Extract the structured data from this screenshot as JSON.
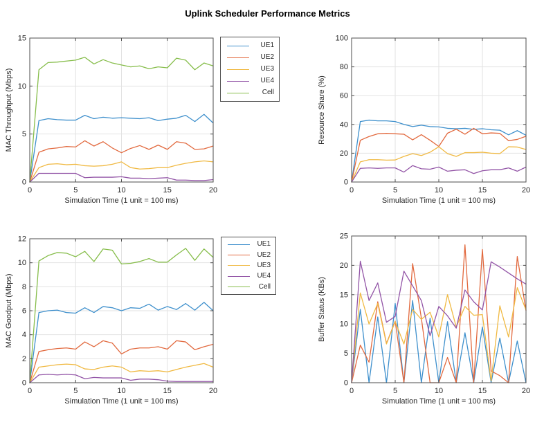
{
  "title": "Uplink Scheduler Performance Metrics",
  "palette": {
    "UE1": "#3D8FCC",
    "UE2": "#E2693E",
    "UE3": "#F0B942",
    "UE4": "#9254A6",
    "Cell": "#86BD4A"
  },
  "axis_colors": {
    "box": "#4d4d4d",
    "grid": "#e2e2e2",
    "text": "#262626"
  },
  "chart_data": [
    {
      "type": "line",
      "ylabel": "MAC Throughput (Mbps)",
      "xlabel": "Simulation Time (1 unit = 100 ms)",
      "xlim": [
        0,
        20
      ],
      "ylim": [
        0,
        15
      ],
      "xticks": [
        0,
        5,
        10,
        15,
        20
      ],
      "yticks": [
        0,
        5,
        10,
        15
      ],
      "grid": true,
      "legend_visible": true,
      "legend_position": "outside-right",
      "x": [
        0,
        1,
        2,
        3,
        4,
        5,
        6,
        7,
        8,
        9,
        10,
        11,
        12,
        13,
        14,
        15,
        16,
        17,
        18,
        19,
        20
      ],
      "series": [
        {
          "name": "UE1",
          "color": "#3D8FCC",
          "values": [
            0,
            6.4,
            6.6,
            6.5,
            6.45,
            6.45,
            6.95,
            6.6,
            6.75,
            6.65,
            6.7,
            6.65,
            6.6,
            6.7,
            6.4,
            6.55,
            6.65,
            6.95,
            6.3,
            7.05,
            6.15
          ]
        },
        {
          "name": "UE2",
          "color": "#E2693E",
          "values": [
            0,
            3.1,
            3.45,
            3.55,
            3.7,
            3.65,
            4.3,
            3.75,
            4.2,
            3.55,
            3.05,
            3.5,
            3.8,
            3.4,
            3.85,
            3.4,
            4.2,
            4.05,
            3.4,
            3.45,
            3.75
          ]
        },
        {
          "name": "UE3",
          "color": "#F0B942",
          "values": [
            0,
            1.5,
            1.85,
            1.9,
            1.8,
            1.85,
            1.7,
            1.65,
            1.7,
            1.85,
            2.1,
            1.5,
            1.35,
            1.4,
            1.5,
            1.5,
            1.75,
            1.95,
            2.1,
            2.2,
            2.1
          ]
        },
        {
          "name": "UE4",
          "color": "#9254A6",
          "values": [
            0,
            0.9,
            0.9,
            0.9,
            0.9,
            0.9,
            0.45,
            0.5,
            0.5,
            0.5,
            0.55,
            0.4,
            0.4,
            0.35,
            0.4,
            0.45,
            0.2,
            0.2,
            0.15,
            0.15,
            0.25
          ]
        },
        {
          "name": "Cell",
          "color": "#86BD4A",
          "values": [
            0,
            11.7,
            12.45,
            12.5,
            12.6,
            12.7,
            13.0,
            12.3,
            12.75,
            12.4,
            12.2,
            12.0,
            12.1,
            11.8,
            12.0,
            11.9,
            12.9,
            12.7,
            11.7,
            12.4,
            12.1
          ]
        }
      ]
    },
    {
      "type": "line",
      "ylabel": "Resource Share (%)",
      "xlabel": "Simulation Time (1 unit = 100 ms)",
      "xlim": [
        0,
        20
      ],
      "ylim": [
        0,
        100
      ],
      "xticks": [
        0,
        5,
        10,
        15,
        20
      ],
      "yticks": [
        0,
        20,
        40,
        60,
        80,
        100
      ],
      "grid": true,
      "legend_visible": false,
      "x": [
        0,
        1,
        2,
        3,
        4,
        5,
        6,
        7,
        8,
        9,
        10,
        11,
        12,
        13,
        14,
        15,
        16,
        17,
        18,
        19,
        20
      ],
      "series": [
        {
          "name": "UE1",
          "color": "#3D8FCC",
          "values": [
            0,
            42,
            43,
            42.5,
            42.5,
            42,
            40,
            38.5,
            39.5,
            38.5,
            38.3,
            37.3,
            37,
            37.3,
            36.6,
            37,
            36.3,
            36,
            32.8,
            35.7,
            32.5
          ]
        },
        {
          "name": "UE2",
          "color": "#E2693E",
          "values": [
            0,
            29,
            31.6,
            33.5,
            33.8,
            33.5,
            33.2,
            29.3,
            32.9,
            29,
            24.7,
            33.9,
            36.7,
            33.2,
            37.3,
            33.5,
            34.1,
            33.8,
            28.7,
            29.6,
            31.8
          ]
        },
        {
          "name": "UE3",
          "color": "#F0B942",
          "values": [
            0,
            14,
            15.5,
            15.5,
            15.2,
            15.3,
            17.8,
            19.7,
            18.4,
            20.7,
            24.5,
            19.7,
            17.8,
            20.4,
            20.4,
            20.7,
            20,
            19.7,
            24.5,
            24.3,
            22.6
          ]
        },
        {
          "name": "UE4",
          "color": "#9254A6",
          "values": [
            0,
            9.5,
            9.8,
            9.5,
            9.8,
            9.8,
            6.9,
            11.4,
            9.2,
            8.9,
            10.4,
            7.5,
            8.2,
            8.5,
            5.9,
            7.8,
            8.5,
            8.5,
            9.8,
            7.5,
            10.4
          ]
        }
      ]
    },
    {
      "type": "line",
      "ylabel": "MAC Goodput (Mbps)",
      "xlabel": "Simulation Time (1 unit = 100 ms)",
      "xlim": [
        0,
        20
      ],
      "ylim": [
        0,
        12
      ],
      "xticks": [
        0,
        5,
        10,
        15,
        20
      ],
      "yticks": [
        0,
        2,
        4,
        6,
        8,
        10,
        12
      ],
      "grid": true,
      "legend_visible": true,
      "legend_position": "outside-right",
      "x": [
        0,
        1,
        2,
        3,
        4,
        5,
        6,
        7,
        8,
        9,
        10,
        11,
        12,
        13,
        14,
        15,
        16,
        17,
        18,
        19,
        20
      ],
      "series": [
        {
          "name": "UE1",
          "color": "#3D8FCC",
          "values": [
            0,
            5.85,
            6.0,
            6.05,
            5.85,
            5.8,
            6.25,
            5.85,
            6.35,
            6.25,
            6.0,
            6.25,
            6.2,
            6.55,
            6.05,
            6.35,
            6.1,
            6.6,
            6.05,
            6.7,
            6.0
          ]
        },
        {
          "name": "UE2",
          "color": "#E2693E",
          "values": [
            0,
            2.6,
            2.75,
            2.85,
            2.9,
            2.8,
            3.4,
            3.0,
            3.5,
            3.3,
            2.4,
            2.8,
            2.9,
            2.9,
            3.0,
            2.8,
            3.5,
            3.4,
            2.75,
            3.0,
            3.2
          ]
        },
        {
          "name": "UE3",
          "color": "#F0B942",
          "values": [
            0,
            1.3,
            1.4,
            1.5,
            1.55,
            1.5,
            1.15,
            1.1,
            1.3,
            1.4,
            1.3,
            0.9,
            1.0,
            0.95,
            1.0,
            0.9,
            1.1,
            1.3,
            1.45,
            1.6,
            1.3
          ]
        },
        {
          "name": "UE4",
          "color": "#9254A6",
          "values": [
            0,
            0.65,
            0.7,
            0.65,
            0.7,
            0.65,
            0.33,
            0.44,
            0.4,
            0.4,
            0.4,
            0.2,
            0.3,
            0.3,
            0.25,
            0.13,
            0.1,
            0.1,
            0.1,
            0.1,
            0.1
          ]
        },
        {
          "name": "Cell",
          "color": "#86BD4A",
          "values": [
            0,
            10.15,
            10.6,
            10.85,
            10.8,
            10.5,
            10.95,
            10.1,
            11.15,
            11.05,
            9.9,
            9.95,
            10.1,
            10.35,
            10.05,
            10.05,
            10.65,
            11.2,
            10.2,
            11.15,
            10.45
          ]
        }
      ]
    },
    {
      "type": "line",
      "ylabel": "Buffer Status (KBs)",
      "xlabel": "Simulation Time (1 unit = 100 ms)",
      "xlim": [
        0,
        20
      ],
      "ylim": [
        0,
        25
      ],
      "xticks": [
        0,
        5,
        10,
        15,
        20
      ],
      "yticks": [
        0,
        5,
        10,
        15,
        20,
        25
      ],
      "grid": true,
      "legend_visible": false,
      "x": [
        0,
        1,
        2,
        3,
        4,
        5,
        6,
        7,
        8,
        9,
        10,
        11,
        12,
        13,
        14,
        15,
        16,
        17,
        18,
        19,
        20
      ],
      "series": [
        {
          "name": "UE1",
          "color": "#3D8FCC",
          "values": [
            0,
            12.5,
            0,
            11.2,
            0,
            13.5,
            0,
            14,
            0,
            11,
            0,
            10.4,
            0,
            8.5,
            0,
            9.5,
            0,
            7.6,
            0,
            7.1,
            0
          ]
        },
        {
          "name": "UE2",
          "color": "#E2693E",
          "values": [
            0,
            6.4,
            3.5,
            13.8,
            6.7,
            10.5,
            0,
            20.3,
            11,
            0,
            0,
            4.3,
            0,
            23.5,
            0,
            22.7,
            2,
            1.2,
            0,
            21.5,
            12.3
          ]
        },
        {
          "name": "UE3",
          "color": "#F0B942",
          "values": [
            0,
            15.3,
            10,
            13.5,
            6.6,
            10.4,
            6.6,
            12.5,
            10.8,
            12,
            7.8,
            15,
            9.5,
            13,
            11.5,
            11.6,
            0.3,
            13.1,
            7.8,
            16.2,
            12.4
          ]
        },
        {
          "name": "UE4",
          "color": "#9254A6",
          "values": [
            0,
            20.7,
            14,
            17,
            10.3,
            11.3,
            19,
            16.5,
            14,
            8,
            13,
            11.4,
            9.3,
            15.8,
            13.8,
            12.4,
            20.6,
            19.7,
            18.7,
            17.7,
            16.8
          ]
        }
      ]
    }
  ]
}
